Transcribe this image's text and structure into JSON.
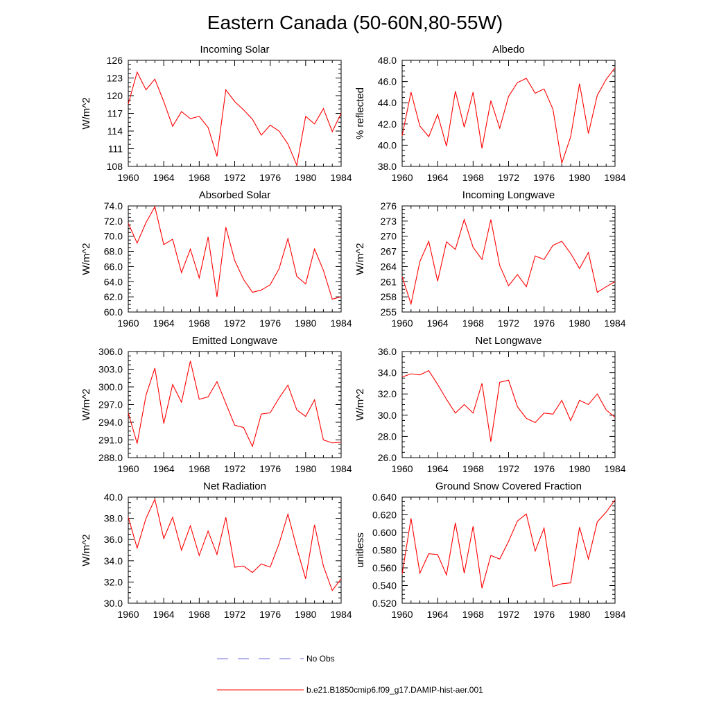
{
  "figure": {
    "title": "Eastern Canada (50-60N,80-55W)",
    "legend": [
      {
        "label": "No Obs",
        "color": "#6b6bd8",
        "dash": "dashed"
      },
      {
        "label": "b.e21.B1850cmip6.f09_g17.DAMIP-hist-aer.001",
        "color": "#ff0000",
        "dash": "solid"
      }
    ]
  },
  "chart_data": [
    {
      "type": "line",
      "title": "Incoming Solar",
      "ylabel": "W/m^2",
      "xlim": [
        1960,
        1984
      ],
      "ylim": [
        108,
        126
      ],
      "yticks": [
        "108",
        "111",
        "114",
        "117",
        "120",
        "123",
        "126"
      ],
      "xticks": [
        "1960",
        "1964",
        "1968",
        "1972",
        "1976",
        "1980",
        "1984"
      ],
      "series": [
        {
          "color": "#ff0000",
          "x": [
            1960,
            1961,
            1962,
            1963,
            1964,
            1965,
            1966,
            1967,
            1968,
            1969,
            1970,
            1971,
            1972,
            1973,
            1974,
            1975,
            1976,
            1977,
            1978,
            1979,
            1980,
            1981,
            1982,
            1983,
            1984
          ],
          "y": [
            118.6,
            124.0,
            121.0,
            122.8,
            119.0,
            114.8,
            117.3,
            116.1,
            116.5,
            114.6,
            109.7,
            121.0,
            119.0,
            117.6,
            116.0,
            113.3,
            115.0,
            114.0,
            111.8,
            108.2,
            116.5,
            115.2,
            117.8,
            113.9,
            117.0
          ]
        }
      ]
    },
    {
      "type": "line",
      "title": "Albedo",
      "ylabel": "% reflected",
      "xlim": [
        1960,
        1984
      ],
      "ylim": [
        38.0,
        48.0
      ],
      "yticks": [
        "38.0",
        "40.0",
        "42.0",
        "44.0",
        "46.0",
        "48.0"
      ],
      "xticks": [
        "1960",
        "1964",
        "1968",
        "1972",
        "1976",
        "1980",
        "1984"
      ],
      "series": [
        {
          "color": "#ff0000",
          "x": [
            1960,
            1961,
            1962,
            1963,
            1964,
            1965,
            1966,
            1967,
            1968,
            1969,
            1970,
            1971,
            1972,
            1973,
            1974,
            1975,
            1976,
            1977,
            1978,
            1979,
            1980,
            1981,
            1982,
            1983,
            1984
          ],
          "y": [
            40.9,
            45.0,
            41.8,
            40.8,
            42.9,
            39.9,
            45.1,
            41.7,
            45.0,
            39.7,
            44.2,
            41.6,
            44.6,
            45.9,
            46.3,
            44.9,
            45.3,
            43.4,
            38.3,
            40.8,
            45.8,
            41.1,
            44.7,
            46.2,
            47.3
          ]
        }
      ]
    },
    {
      "type": "line",
      "title": "Absorbed Solar",
      "ylabel": "W/m^2",
      "xlim": [
        1960,
        1984
      ],
      "ylim": [
        60.0,
        74.0
      ],
      "yticks": [
        "60.0",
        "62.0",
        "64.0",
        "66.0",
        "68.0",
        "70.0",
        "72.0",
        "74.0"
      ],
      "xticks": [
        "1960",
        "1964",
        "1968",
        "1972",
        "1976",
        "1980",
        "1984"
      ],
      "series": [
        {
          "color": "#ff0000",
          "x": [
            1960,
            1961,
            1962,
            1963,
            1964,
            1965,
            1966,
            1967,
            1968,
            1969,
            1970,
            1971,
            1972,
            1973,
            1974,
            1975,
            1976,
            1977,
            1978,
            1979,
            1980,
            1981,
            1982,
            1983,
            1984
          ],
          "y": [
            71.7,
            69.1,
            71.8,
            73.9,
            68.9,
            69.6,
            65.2,
            68.3,
            64.5,
            69.9,
            62.0,
            71.2,
            66.8,
            64.3,
            62.6,
            62.9,
            63.6,
            65.7,
            69.7,
            64.7,
            63.7,
            68.3,
            65.5,
            61.7,
            62.0
          ]
        }
      ]
    },
    {
      "type": "line",
      "title": "Incoming Longwave",
      "ylabel": "W/m^2",
      "xlim": [
        1960,
        1984
      ],
      "ylim": [
        255,
        276
      ],
      "yticks": [
        "255",
        "258",
        "261",
        "264",
        "267",
        "270",
        "273",
        "276"
      ],
      "xticks": [
        "1960",
        "1964",
        "1968",
        "1972",
        "1976",
        "1980",
        "1984"
      ],
      "series": [
        {
          "color": "#ff0000",
          "x": [
            1960,
            1961,
            1962,
            1963,
            1964,
            1965,
            1966,
            1967,
            1968,
            1969,
            1970,
            1971,
            1972,
            1973,
            1974,
            1975,
            1976,
            1977,
            1978,
            1979,
            1980,
            1981,
            1982,
            1983,
            1984
          ],
          "y": [
            262.0,
            256.6,
            265.0,
            269.0,
            261.1,
            268.9,
            267.4,
            273.3,
            267.8,
            265.4,
            273.3,
            264.2,
            260.2,
            262.4,
            260.0,
            266.1,
            265.4,
            268.2,
            269.0,
            266.6,
            263.6,
            266.8,
            258.9,
            260.0,
            261.0
          ]
        }
      ]
    },
    {
      "type": "line",
      "title": "Emitted Longwave",
      "ylabel": "W/m^2",
      "xlim": [
        1960,
        1984
      ],
      "ylim": [
        288.0,
        306.0
      ],
      "yticks": [
        "288.0",
        "291.0",
        "294.0",
        "297.0",
        "300.0",
        "303.0",
        "306.0"
      ],
      "xticks": [
        "1960",
        "1964",
        "1968",
        "1972",
        "1976",
        "1980",
        "1984"
      ],
      "series": [
        {
          "color": "#ff0000",
          "x": [
            1960,
            1961,
            1962,
            1963,
            1964,
            1965,
            1966,
            1967,
            1968,
            1969,
            1970,
            1971,
            1972,
            1973,
            1974,
            1975,
            1976,
            1977,
            1978,
            1979,
            1980,
            1981,
            1982,
            1983,
            1984
          ],
          "y": [
            295.6,
            290.4,
            298.6,
            303.2,
            293.8,
            300.4,
            297.4,
            304.4,
            297.9,
            298.3,
            300.9,
            297.2,
            293.5,
            293.1,
            289.9,
            295.4,
            295.6,
            298.1,
            300.3,
            296.1,
            295.0,
            297.8,
            291.0,
            290.5,
            290.6
          ]
        }
      ]
    },
    {
      "type": "line",
      "title": "Net Longwave",
      "ylabel": "W/m^2",
      "xlim": [
        1960,
        1984
      ],
      "ylim": [
        26.0,
        36.0
      ],
      "yticks": [
        "26.0",
        "28.0",
        "30.0",
        "32.0",
        "34.0",
        "36.0"
      ],
      "xticks": [
        "1960",
        "1964",
        "1968",
        "1972",
        "1976",
        "1980",
        "1984"
      ],
      "series": [
        {
          "color": "#ff0000",
          "x": [
            1960,
            1961,
            1962,
            1963,
            1964,
            1965,
            1966,
            1967,
            1968,
            1969,
            1970,
            1971,
            1972,
            1973,
            1974,
            1975,
            1976,
            1977,
            1978,
            1979,
            1980,
            1981,
            1982,
            1983,
            1984
          ],
          "y": [
            33.6,
            33.9,
            33.8,
            34.2,
            32.9,
            31.5,
            30.2,
            31.0,
            30.2,
            33.0,
            27.5,
            33.1,
            33.3,
            30.8,
            29.7,
            29.3,
            30.2,
            30.1,
            31.4,
            29.5,
            31.4,
            31.0,
            32.0,
            30.5,
            29.8
          ]
        }
      ]
    },
    {
      "type": "line",
      "title": "Net Radiation",
      "ylabel": "W/m^2",
      "xlim": [
        1960,
        1984
      ],
      "ylim": [
        30.0,
        40.0
      ],
      "yticks": [
        "30.0",
        "32.0",
        "34.0",
        "36.0",
        "38.0",
        "40.0"
      ],
      "xticks": [
        "1960",
        "1964",
        "1968",
        "1972",
        "1976",
        "1980",
        "1984"
      ],
      "series": [
        {
          "color": "#ff0000",
          "x": [
            1960,
            1961,
            1962,
            1963,
            1964,
            1965,
            1966,
            1967,
            1968,
            1969,
            1970,
            1971,
            1972,
            1973,
            1974,
            1975,
            1976,
            1977,
            1978,
            1979,
            1980,
            1981,
            1982,
            1983,
            1984
          ],
          "y": [
            38.1,
            35.2,
            38.0,
            39.8,
            36.1,
            38.1,
            35.0,
            37.3,
            34.5,
            36.8,
            34.6,
            38.1,
            33.4,
            33.5,
            32.9,
            33.7,
            33.4,
            35.6,
            38.4,
            35.2,
            32.3,
            37.4,
            33.5,
            31.2,
            32.3
          ]
        }
      ]
    },
    {
      "type": "line",
      "title": "Ground Snow Covered Fraction",
      "ylabel": "unitless",
      "xlim": [
        1960,
        1984
      ],
      "ylim": [
        0.52,
        0.64
      ],
      "yticks": [
        "0.520",
        "0.540",
        "0.560",
        "0.580",
        "0.600",
        "0.620",
        "0.640"
      ],
      "xticks": [
        "1960",
        "1964",
        "1968",
        "1972",
        "1976",
        "1980",
        "1984"
      ],
      "series": [
        {
          "color": "#ff0000",
          "x": [
            1960,
            1961,
            1962,
            1963,
            1964,
            1965,
            1966,
            1967,
            1968,
            1969,
            1970,
            1971,
            1972,
            1973,
            1974,
            1975,
            1976,
            1977,
            1978,
            1979,
            1980,
            1981,
            1982,
            1983,
            1984
          ],
          "y": [
            0.553,
            0.616,
            0.554,
            0.576,
            0.575,
            0.552,
            0.611,
            0.554,
            0.607,
            0.537,
            0.574,
            0.57,
            0.59,
            0.613,
            0.621,
            0.579,
            0.605,
            0.539,
            0.542,
            0.543,
            0.606,
            0.57,
            0.612,
            0.623,
            0.637
          ]
        }
      ]
    }
  ]
}
